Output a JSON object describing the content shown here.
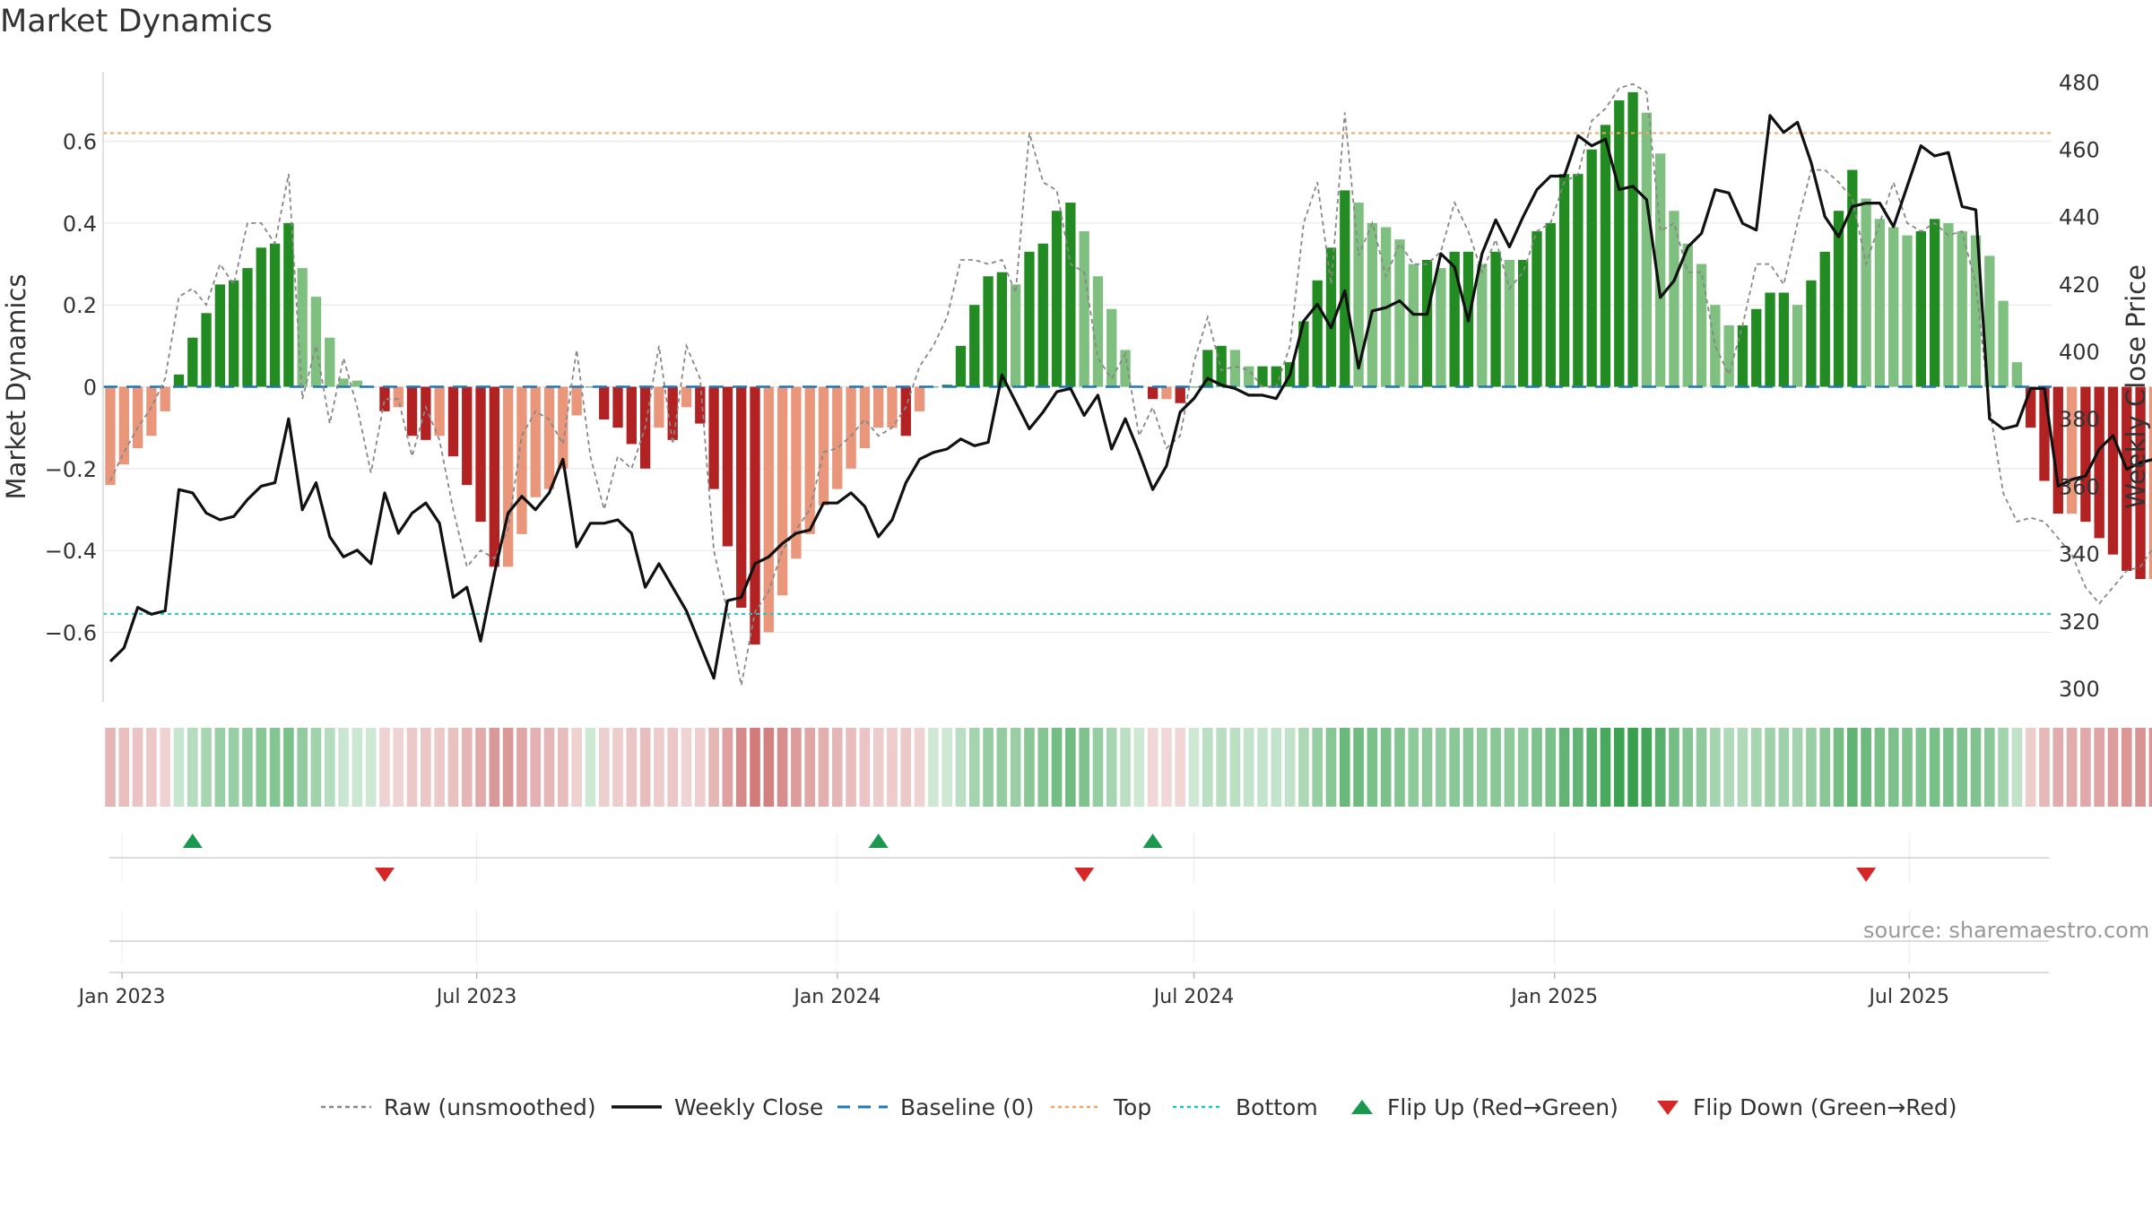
{
  "title": "Market Dynamics",
  "source": "source: sharemaestro.com",
  "legend": {
    "raw": "Raw (unsmoothed)",
    "close": "Weekly Close",
    "baseline": "Baseline (0)",
    "top": "Top",
    "bottom": "Bottom",
    "flip_up": "Flip Up (Red→Green)",
    "flip_down": "Flip Down (Green→Red)"
  },
  "colors": {
    "pos_strong": "#228b22",
    "pos_weak": "#7fbf7f",
    "neg_strong": "#b22222",
    "neg_weak": "#e9967a",
    "close_line": "#111111",
    "raw_line": "#888888",
    "baseline": "#1f77b4",
    "top": "#f4a460",
    "bottom": "#20c5c8",
    "flip_up": "#1a9850",
    "flip_down": "#d62728"
  },
  "chart_data": {
    "type": "bar",
    "title": "Market Dynamics",
    "ylabel": "Market Dynamics",
    "y2label": "Weekly Close Price",
    "ylim": [
      -0.77,
      0.77
    ],
    "y2lim": [
      296,
      483
    ],
    "yticks": [
      "0.6",
      "0.4",
      "0.2",
      "0",
      "−0.2",
      "−0.4",
      "−0.6"
    ],
    "ytick_values": [
      0.6,
      0.4,
      0.2,
      0,
      -0.2,
      -0.4,
      -0.6
    ],
    "y2ticks": [
      "480",
      "460",
      "440",
      "420",
      "400",
      "380",
      "360",
      "340",
      "320",
      "300"
    ],
    "y2tick_values": [
      480,
      460,
      440,
      420,
      400,
      380,
      360,
      340,
      320,
      300
    ],
    "xticks": [
      "Jan 2023",
      "Jul 2023",
      "Jan 2024",
      "Jul 2024",
      "Jan 2025",
      "Jul 2025"
    ],
    "xtick_dates": [
      "2023-01-01",
      "2023-07-01",
      "2024-01-01",
      "2024-07-01",
      "2025-01-01",
      "2025-07-01"
    ],
    "start_date": "2022-12-26",
    "end_date": "2025-09-08",
    "top_level": 0.62,
    "bottom_level": -0.555,
    "baseline": 0,
    "grid": true,
    "legend_position": "bottom",
    "series": [
      {
        "name": "Market Dynamics",
        "values": [
          -0.24,
          -0.19,
          -0.15,
          -0.12,
          -0.06,
          0.03,
          0.12,
          0.18,
          0.25,
          0.26,
          0.29,
          0.34,
          0.35,
          0.4,
          0.29,
          0.22,
          0.12,
          0.02,
          0.015,
          0.0,
          -0.06,
          -0.05,
          -0.12,
          -0.13,
          -0.12,
          -0.17,
          -0.24,
          -0.33,
          -0.44,
          -0.44,
          -0.36,
          -0.27,
          -0.25,
          -0.2,
          -0.07,
          0.0,
          -0.08,
          -0.1,
          -0.14,
          -0.2,
          -0.1,
          -0.13,
          -0.05,
          -0.09,
          -0.25,
          -0.39,
          -0.54,
          -0.63,
          -0.6,
          -0.51,
          -0.42,
          -0.36,
          -0.29,
          -0.25,
          -0.2,
          -0.15,
          -0.1,
          -0.1,
          -0.12,
          -0.06,
          0.0,
          0.005,
          0.1,
          0.2,
          0.27,
          0.28,
          0.25,
          0.33,
          0.35,
          0.43,
          0.45,
          0.38,
          0.27,
          0.19,
          0.09,
          0.0,
          -0.03,
          -0.03,
          -0.04,
          0.0,
          0.09,
          0.1,
          0.09,
          0.05,
          0.05,
          0.05,
          0.06,
          0.16,
          0.26,
          0.34,
          0.48,
          0.45,
          0.4,
          0.39,
          0.36,
          0.3,
          0.31,
          0.29,
          0.33,
          0.33,
          0.3,
          0.33,
          0.31,
          0.31,
          0.38,
          0.4,
          0.52,
          0.52,
          0.58,
          0.64,
          0.7,
          0.72,
          0.67,
          0.57,
          0.43,
          0.35,
          0.3,
          0.2,
          0.15,
          0.15,
          0.19,
          0.23,
          0.23,
          0.2,
          0.26,
          0.33,
          0.43,
          0.53,
          0.46,
          0.41,
          0.39,
          0.37,
          0.38,
          0.41,
          0.4,
          0.38,
          0.37,
          0.32,
          0.21,
          0.06,
          -0.1,
          -0.23,
          -0.31,
          -0.31,
          -0.33,
          -0.37,
          -0.41,
          -0.45,
          -0.47,
          -0.47,
          -0.46,
          -0.43,
          -0.4,
          -0.35
        ]
      },
      {
        "name": "Weekly Close",
        "axis": "right",
        "values": [
          308,
          312,
          324,
          322,
          323,
          359,
          358,
          352,
          350,
          351,
          356,
          360,
          361,
          380,
          353,
          361,
          345,
          339,
          341,
          337,
          358,
          346,
          352,
          355,
          349,
          327,
          330,
          314,
          334,
          352,
          357,
          353,
          358,
          368,
          342,
          349,
          349,
          350,
          346,
          330,
          337,
          330,
          323,
          313,
          303,
          326,
          327,
          337,
          339,
          343,
          346,
          347,
          355,
          355,
          358,
          354,
          345,
          350,
          361,
          368,
          370,
          371,
          374,
          372,
          373,
          393,
          385,
          377,
          382,
          388,
          389,
          381,
          387,
          371,
          380,
          370,
          359,
          366,
          382,
          386,
          392,
          390,
          389,
          387,
          387,
          386,
          393,
          409,
          414,
          407,
          418,
          395,
          412,
          413,
          415,
          411,
          411,
          429,
          425,
          409,
          429,
          439,
          431,
          440,
          448,
          452,
          452,
          464,
          461,
          463,
          448,
          449,
          445,
          416,
          421,
          431,
          435,
          448,
          447,
          438,
          436,
          470,
          465,
          468,
          456,
          440,
          434,
          443,
          444,
          444,
          437,
          449,
          461,
          458,
          459,
          443,
          442,
          380,
          377,
          378,
          389,
          389,
          360,
          362,
          363,
          371,
          375,
          365,
          367,
          368,
          367,
          357
        ]
      },
      {
        "name": "Raw (unsmoothed)",
        "values": [
          -0.23,
          -0.16,
          -0.1,
          -0.05,
          0.02,
          0.22,
          0.24,
          0.2,
          0.3,
          0.25,
          0.4,
          0.4,
          0.35,
          0.52,
          -0.03,
          0.1,
          -0.09,
          0.07,
          -0.05,
          -0.21,
          -0.03,
          -0.03,
          -0.17,
          -0.05,
          -0.13,
          -0.3,
          -0.44,
          -0.4,
          -0.42,
          -0.35,
          -0.12,
          -0.06,
          -0.08,
          -0.14,
          0.09,
          -0.17,
          -0.3,
          -0.17,
          -0.2,
          -0.1,
          0.1,
          -0.14,
          0.1,
          0.02,
          -0.4,
          -0.55,
          -0.73,
          -0.55,
          -0.5,
          -0.4,
          -0.35,
          -0.3,
          -0.16,
          -0.15,
          -0.12,
          -0.08,
          -0.12,
          -0.1,
          -0.05,
          0.05,
          0.1,
          0.17,
          0.31,
          0.31,
          0.3,
          0.31,
          0.23,
          0.62,
          0.5,
          0.48,
          0.3,
          0.28,
          0.07,
          0.02,
          0.08,
          -0.12,
          -0.05,
          -0.15,
          -0.12,
          0.06,
          0.17,
          0.04,
          0.05,
          0.04,
          0.0,
          0.0,
          0.1,
          0.4,
          0.5,
          0.25,
          0.67,
          0.32,
          0.4,
          0.27,
          0.35,
          0.3,
          0.3,
          0.33,
          0.45,
          0.38,
          0.28,
          0.36,
          0.24,
          0.28,
          0.38,
          0.4,
          0.5,
          0.52,
          0.65,
          0.68,
          0.73,
          0.74,
          0.72,
          0.38,
          0.4,
          0.28,
          0.28,
          0.1,
          0.03,
          0.15,
          0.3,
          0.3,
          0.25,
          0.4,
          0.53,
          0.53,
          0.5,
          0.46,
          0.3,
          0.4,
          0.5,
          0.4,
          0.38,
          0.4,
          0.37,
          0.38,
          0.25,
          -0.05,
          -0.26,
          -0.33,
          -0.32,
          -0.33,
          -0.37,
          -0.41,
          -0.49,
          -0.53,
          -0.49,
          -0.45,
          -0.44,
          -0.39,
          -0.34,
          -0.27
        ]
      }
    ],
    "flips_up_dates": [
      "2023-02-06",
      "2024-01-22",
      "2024-06-10"
    ],
    "flips_down_dates": [
      "2023-05-15",
      "2024-05-06",
      "2025-06-09"
    ]
  }
}
